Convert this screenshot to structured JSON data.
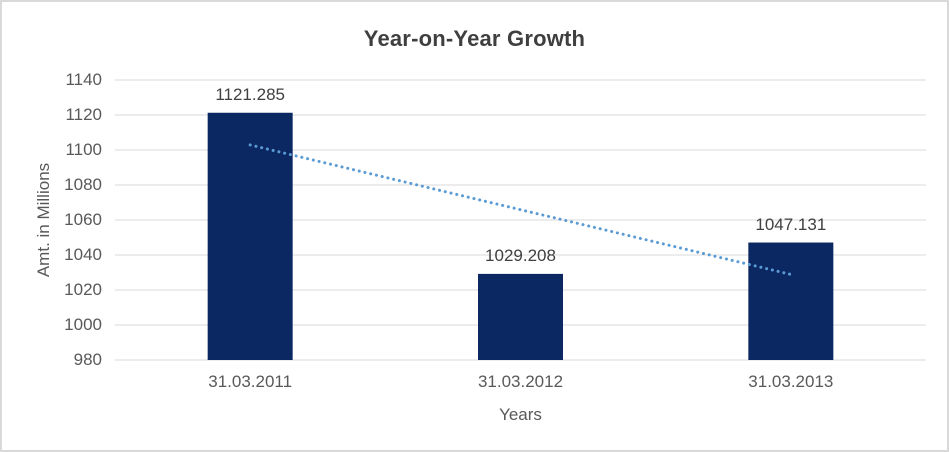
{
  "frame": {
    "background": "#ffffff",
    "border_color": "#d9d9d9"
  },
  "chart_data": {
    "type": "bar",
    "title": "Year-on-Year Growth",
    "xlabel": "Years",
    "ylabel": "Amt. in Millions",
    "categories": [
      "31.03.2011",
      "31.03.2012",
      "31.03.2013"
    ],
    "values": [
      1121.285,
      1029.208,
      1047.131
    ],
    "value_labels": [
      "1121.285",
      "1029.208",
      "1047.131"
    ],
    "ylim": [
      980,
      1140
    ],
    "ytick_step": 20,
    "grid": true,
    "legend": "none",
    "colors": {
      "bar": "#0b2862",
      "trendline": "#5b9bd5",
      "gridline": "#d9d9d9",
      "tick_text": "#595959",
      "data_label_text": "#404040",
      "title_text": "#3f3f3f"
    },
    "trendline": {
      "type": "linear",
      "style": "dotted",
      "start_value": 1102.9,
      "end_value": 1028.9
    }
  }
}
